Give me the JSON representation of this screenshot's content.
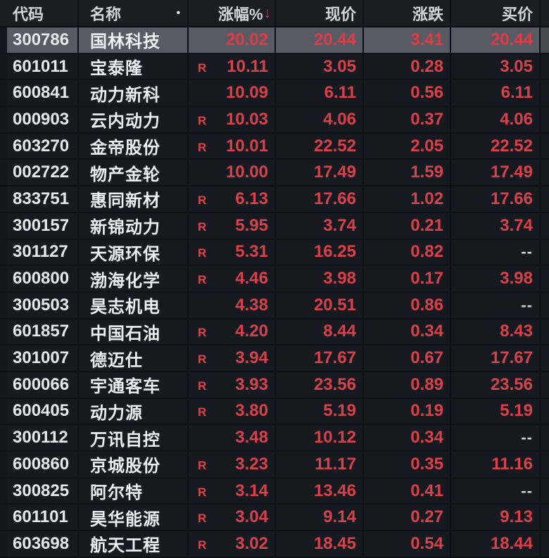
{
  "app": {
    "description": "stock watchlist quote table",
    "theme": "dark"
  },
  "colors": {
    "background": "#171920",
    "header_background": "#1b1d25",
    "selected_row_background": "#585b63",
    "up_red": "#d8414a",
    "white_text": "#eef0f4",
    "badge_red": "#de454d",
    "na_gray": "#ced1d7"
  },
  "table": {
    "margin_badge": "R",
    "columns": [
      {
        "key": "code",
        "label": "代码"
      },
      {
        "key": "name",
        "label": "名称",
        "indicator": "•"
      },
      {
        "key": "change_pct",
        "label": "涨幅%",
        "sort_arrow": "↓",
        "sort": "desc"
      },
      {
        "key": "price",
        "label": "现价"
      },
      {
        "key": "change",
        "label": "涨跌"
      },
      {
        "key": "buy",
        "label": "买价"
      }
    ],
    "rows": [
      {
        "code": "300786",
        "name": "国林科技",
        "margin": false,
        "change_pct": "20.02",
        "price": "20.44",
        "change": "3.41",
        "buy": "20.44",
        "selected": true
      },
      {
        "code": "601011",
        "name": "宝泰隆",
        "margin": true,
        "change_pct": "10.11",
        "price": "3.05",
        "change": "0.28",
        "buy": "3.05",
        "selected": false
      },
      {
        "code": "600841",
        "name": "动力新科",
        "margin": false,
        "change_pct": "10.09",
        "price": "6.11",
        "change": "0.56",
        "buy": "6.11",
        "selected": false
      },
      {
        "code": "000903",
        "name": "云内动力",
        "margin": true,
        "change_pct": "10.03",
        "price": "4.06",
        "change": "0.37",
        "buy": "4.06",
        "selected": false
      },
      {
        "code": "603270",
        "name": "金帝股份",
        "margin": true,
        "change_pct": "10.01",
        "price": "22.52",
        "change": "2.05",
        "buy": "22.52",
        "selected": false
      },
      {
        "code": "002722",
        "name": "物产金轮",
        "margin": false,
        "change_pct": "10.00",
        "price": "17.49",
        "change": "1.59",
        "buy": "17.49",
        "selected": false
      },
      {
        "code": "833751",
        "name": "惠同新材",
        "margin": true,
        "change_pct": "6.13",
        "price": "17.66",
        "change": "1.02",
        "buy": "17.66",
        "selected": false
      },
      {
        "code": "300157",
        "name": "新锦动力",
        "margin": true,
        "change_pct": "5.95",
        "price": "3.74",
        "change": "0.21",
        "buy": "3.74",
        "selected": false
      },
      {
        "code": "301127",
        "name": "天源环保",
        "margin": true,
        "change_pct": "5.31",
        "price": "16.25",
        "change": "0.82",
        "buy": "--",
        "selected": false
      },
      {
        "code": "600800",
        "name": "渤海化学",
        "margin": true,
        "change_pct": "4.46",
        "price": "3.98",
        "change": "0.17",
        "buy": "3.98",
        "selected": false
      },
      {
        "code": "300503",
        "name": "昊志机电",
        "margin": false,
        "change_pct": "4.38",
        "price": "20.51",
        "change": "0.86",
        "buy": "--",
        "selected": false
      },
      {
        "code": "601857",
        "name": "中国石油",
        "margin": true,
        "change_pct": "4.20",
        "price": "8.44",
        "change": "0.34",
        "buy": "8.43",
        "selected": false
      },
      {
        "code": "301007",
        "name": "德迈仕",
        "margin": true,
        "change_pct": "3.94",
        "price": "17.67",
        "change": "0.67",
        "buy": "17.67",
        "selected": false
      },
      {
        "code": "600066",
        "name": "宇通客车",
        "margin": true,
        "change_pct": "3.93",
        "price": "23.56",
        "change": "0.89",
        "buy": "23.56",
        "selected": false
      },
      {
        "code": "600405",
        "name": "动力源",
        "margin": true,
        "change_pct": "3.80",
        "price": "5.19",
        "change": "0.19",
        "buy": "5.19",
        "selected": false
      },
      {
        "code": "300112",
        "name": "万讯自控",
        "margin": false,
        "change_pct": "3.48",
        "price": "10.12",
        "change": "0.34",
        "buy": "--",
        "selected": false
      },
      {
        "code": "600860",
        "name": "京城股份",
        "margin": true,
        "change_pct": "3.23",
        "price": "11.17",
        "change": "0.35",
        "buy": "11.16",
        "selected": false
      },
      {
        "code": "300825",
        "name": "阿尔特",
        "margin": true,
        "change_pct": "3.14",
        "price": "13.46",
        "change": "0.41",
        "buy": "--",
        "selected": false
      },
      {
        "code": "601101",
        "name": "昊华能源",
        "margin": true,
        "change_pct": "3.04",
        "price": "9.14",
        "change": "0.27",
        "buy": "9.13",
        "selected": false
      },
      {
        "code": "603698",
        "name": "航天工程",
        "margin": true,
        "change_pct": "3.02",
        "price": "18.45",
        "change": "0.54",
        "buy": "18.44",
        "selected": false
      }
    ]
  }
}
